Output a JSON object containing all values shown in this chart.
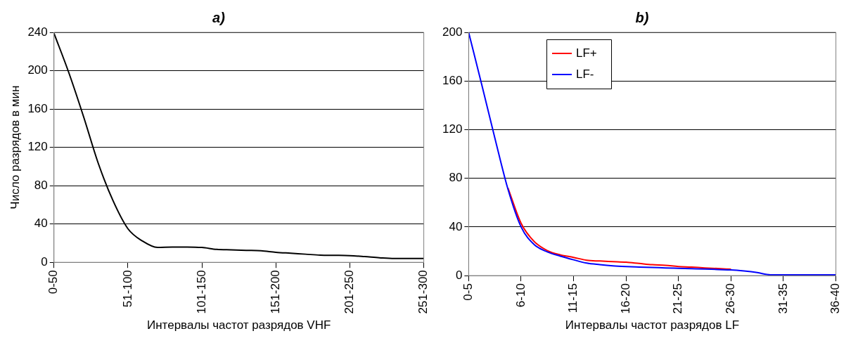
{
  "chart_data": [
    {
      "type": "line",
      "title": "a)",
      "xlabel": "Интервалы частот разрядов VHF",
      "ylabel": "Число разрядов в мин",
      "categories": [
        "0-50",
        null,
        null,
        null,
        null,
        "51-100",
        null,
        null,
        null,
        null,
        "101-150",
        null,
        null,
        null,
        null,
        "151-200",
        null,
        null,
        null,
        null,
        "201-250",
        null,
        null,
        null,
        null,
        "251-300"
      ],
      "ylim": [
        0,
        240
      ],
      "yticks": [
        0,
        40,
        80,
        120,
        160,
        200,
        240
      ],
      "grid": "y",
      "legend": false,
      "marker": "none",
      "line_style": "solid",
      "series": [
        {
          "color": "#000000",
          "values": [
            239,
            198,
            152,
            103,
            64,
            35,
            22,
            15.5,
            16,
            16,
            15.5,
            13.5,
            13,
            12.5,
            12,
            10.5,
            9.5,
            8.5,
            7.5,
            7.3,
            7,
            6,
            4.8,
            4,
            4,
            4
          ]
        }
      ]
    },
    {
      "type": "line",
      "title": "b)",
      "xlabel": "Интервалы частот разрядов LF",
      "categories": [
        "0-5",
        null,
        null,
        null,
        "6-10",
        null,
        null,
        null,
        "11-15",
        null,
        null,
        null,
        "16-20",
        null,
        null,
        null,
        "21-25",
        null,
        null,
        null,
        "26-30",
        null,
        null,
        null,
        "31-35",
        null,
        null,
        null,
        "36-40"
      ],
      "ylim": [
        0,
        200
      ],
      "yticks": [
        0,
        40,
        80,
        120,
        160,
        200
      ],
      "grid": "y",
      "legend": "top",
      "marker": "none",
      "line_style": "solid",
      "series": [
        {
          "name": "LF+",
          "color": "#ff0000",
          "values": [
            null,
            null,
            null,
            72,
            43,
            28,
            20.5,
            17,
            15,
            12.6,
            12,
            11.5,
            11,
            10,
            9,
            8.5,
            7.5,
            7,
            6.3,
            5.8,
            5.2,
            null,
            null,
            null,
            null,
            null,
            null,
            null,
            null
          ]
        },
        {
          "name": "LF-",
          "color": "#0000ff",
          "values": [
            200,
            157,
            113,
            71,
            40,
            25.5,
            19.5,
            16,
            13,
            10.3,
            9,
            8,
            7.4,
            7,
            6.7,
            6.3,
            6,
            5.7,
            5.4,
            5,
            4.7,
            3.8,
            2.5,
            0.7,
            0.7,
            0.7,
            0.7,
            0.7,
            0.7
          ]
        }
      ]
    }
  ]
}
